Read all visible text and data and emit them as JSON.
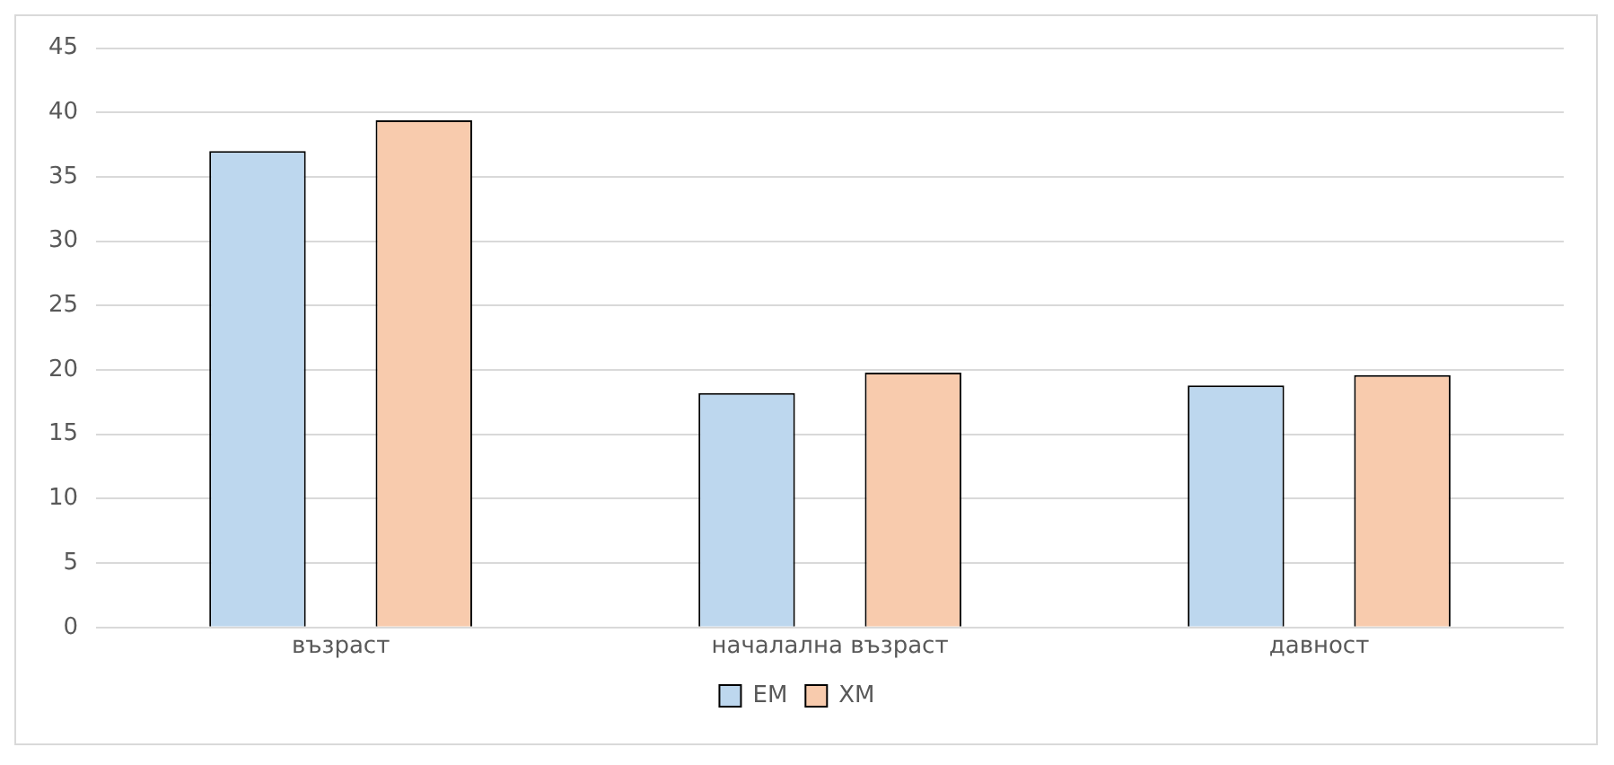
{
  "chart_data": {
    "type": "bar",
    "categories": [
      "възраст",
      "началална възраст",
      "давност"
    ],
    "series": [
      {
        "name": "ЕМ",
        "color": "#bdd7ee",
        "values": [
          37,
          18.2,
          18.8
        ]
      },
      {
        "name": "ХМ",
        "color": "#f8cbad",
        "values": [
          39.4,
          19.8,
          19.6
        ]
      }
    ],
    "ylim": [
      0,
      45
    ],
    "yticks": [
      0,
      5,
      10,
      15,
      20,
      25,
      30,
      35,
      40,
      45
    ],
    "grid": "y",
    "legend": "bottom"
  }
}
